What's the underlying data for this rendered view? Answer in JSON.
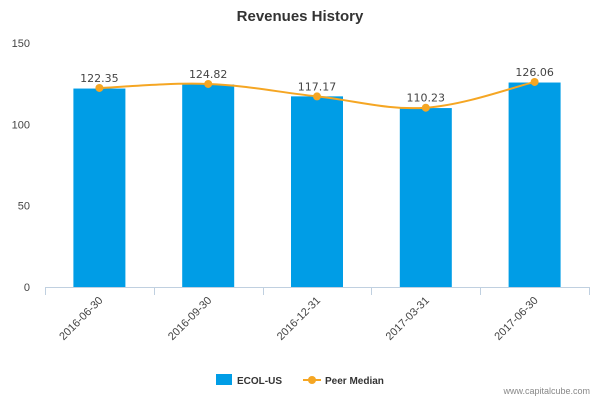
{
  "chart_data": {
    "type": "bar",
    "title": "Revenues History",
    "xlabel": "",
    "ylabel": "",
    "categories": [
      "2016-06-30",
      "2016-09-30",
      "2016-12-31",
      "2017-03-31",
      "2017-06-30"
    ],
    "ylim": [
      0,
      150
    ],
    "yticks": [
      0,
      50,
      100,
      150
    ],
    "grid": false,
    "legend_position": "bottom",
    "series": [
      {
        "name": "ECOL-US",
        "kind": "bar",
        "color": "#009de6",
        "values": [
          122,
          124.5,
          117.2,
          110,
          125.7
        ]
      },
      {
        "name": "Peer Median",
        "kind": "line",
        "color": "#f5a623",
        "values": [
          122.35,
          124.82,
          117.17,
          110.23,
          126.06
        ],
        "labels": [
          "122.35",
          "124.82",
          "117.17",
          "110.23",
          "126.06"
        ]
      }
    ]
  },
  "credit": "www.capitalcube.com"
}
